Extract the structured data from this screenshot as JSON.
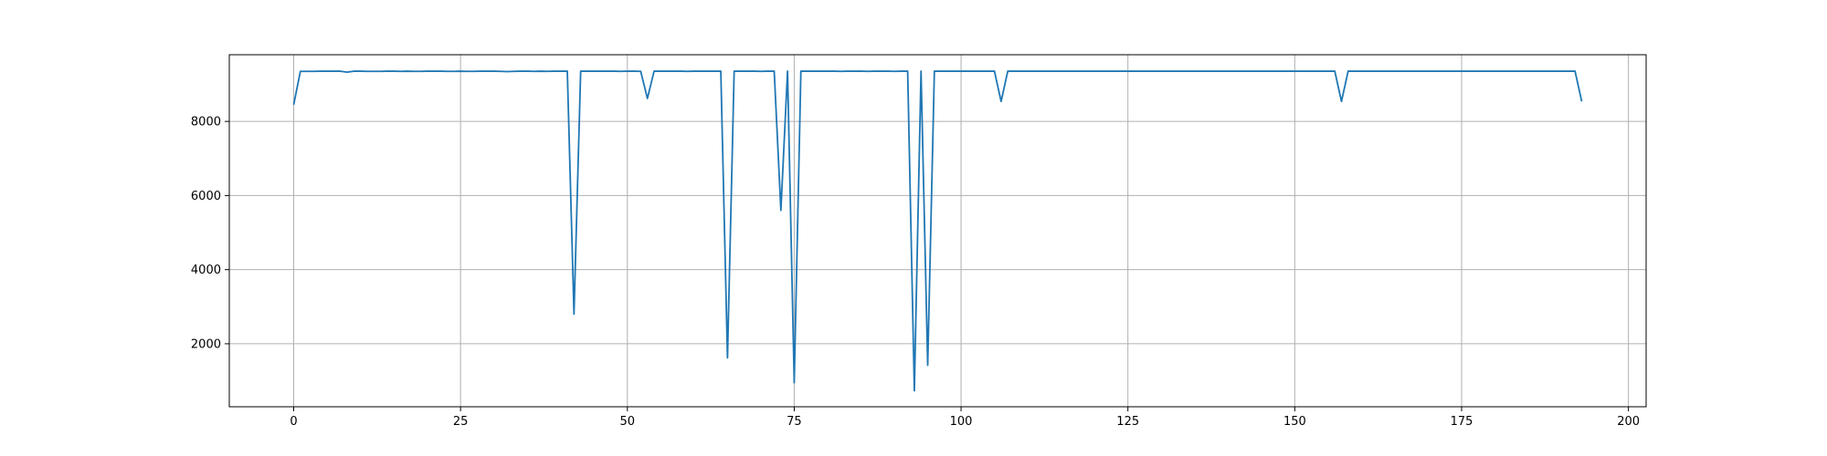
{
  "chart_data": {
    "type": "line",
    "title": "",
    "xlabel": "",
    "ylabel": "",
    "xlim": [
      -9.65,
      202.65
    ],
    "ylim": [
      300,
      9800
    ],
    "xticks": [
      0,
      25,
      50,
      75,
      100,
      125,
      150,
      175,
      200
    ],
    "yticks": [
      2000,
      4000,
      6000,
      8000
    ],
    "grid": true,
    "series_color": "#1f77b4",
    "series": [
      {
        "values": [
          8450,
          9350,
          9350,
          9350,
          9355,
          9355,
          9355,
          9355,
          9330,
          9355,
          9355,
          9350,
          9350,
          9350,
          9355,
          9355,
          9350,
          9355,
          9350,
          9350,
          9355,
          9355,
          9355,
          9350,
          9350,
          9355,
          9350,
          9350,
          9355,
          9355,
          9355,
          9350,
          9345,
          9350,
          9355,
          9355,
          9350,
          9355,
          9350,
          9355,
          9355,
          9355,
          2800,
          9355,
          9355,
          9355,
          9355,
          9355,
          9355,
          9350,
          9355,
          9355,
          9350,
          8620,
          9355,
          9355,
          9355,
          9355,
          9355,
          9350,
          9355,
          9355,
          9355,
          9355,
          9355,
          1620,
          9355,
          9355,
          9355,
          9355,
          9350,
          9355,
          9355,
          5600,
          9355,
          950,
          9355,
          9355,
          9355,
          9355,
          9355,
          9355,
          9350,
          9355,
          9355,
          9355,
          9350,
          9355,
          9355,
          9355,
          9350,
          9355,
          9355,
          730,
          9355,
          1420,
          9355,
          9355,
          9355,
          9355,
          9355,
          9355,
          9355,
          9355,
          9355,
          9355,
          8540,
          9355,
          9355,
          9355,
          9355,
          9355,
          9355,
          9355,
          9355,
          9355,
          9355,
          9355,
          9355,
          9355,
          9355,
          9355,
          9355,
          9355,
          9355,
          9355,
          9355,
          9355,
          9355,
          9355,
          9355,
          9355,
          9355,
          9355,
          9355,
          9355,
          9355,
          9355,
          9355,
          9355,
          9355,
          9355,
          9355,
          9355,
          9355,
          9355,
          9355,
          9355,
          9355,
          9355,
          9355,
          9355,
          9355,
          9355,
          9355,
          9355,
          9355,
          8540,
          9355,
          9355,
          9355,
          9355,
          9355,
          9355,
          9355,
          9355,
          9355,
          9355,
          9355,
          9355,
          9355,
          9355,
          9355,
          9355,
          9355,
          9355,
          9355,
          9355,
          9355,
          9355,
          9355,
          9355,
          9355,
          9355,
          9355,
          9355,
          9355,
          9355,
          9355,
          9355,
          9355,
          9355,
          9355,
          8540
        ]
      }
    ]
  }
}
